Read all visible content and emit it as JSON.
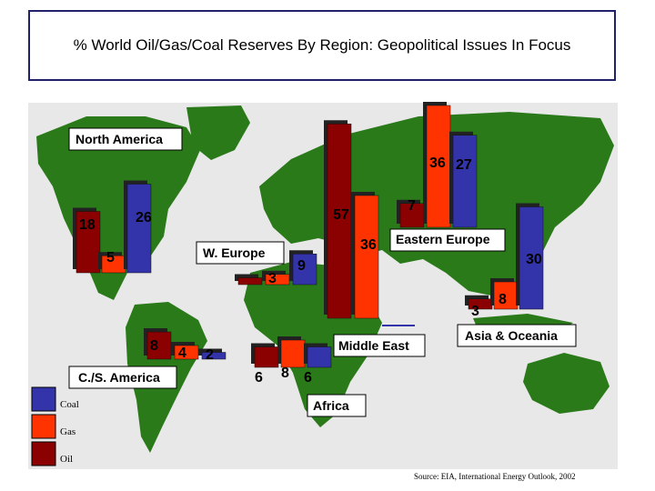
{
  "title": "% World Oil/Gas/Coal Reserves By Region:  Geopolitical Issues In Focus",
  "source": "Source: EIA, International Energy Outlook, 2002",
  "colors": {
    "oil": "#8b0000",
    "gas": "#ff3300",
    "coal": "#3333aa",
    "ocean": "#e8e8e8",
    "land": "#2a7a1a",
    "title_border": "#22226a"
  },
  "chart_data": {
    "type": "bar",
    "title": "% World Oil/Gas/Coal Reserves By Region:  Geopolitical Issues In Focus",
    "series_keys": [
      "oil",
      "gas",
      "coal"
    ],
    "legend": [
      {
        "key": "coal",
        "label": "Coal"
      },
      {
        "key": "gas",
        "label": "Gas"
      },
      {
        "key": "oil",
        "label": "Oil"
      }
    ],
    "legend_position": "bottom-left",
    "regions": [
      {
        "id": "north-america",
        "name": "North America",
        "oil": 18,
        "gas": 5,
        "coal": 26
      },
      {
        "id": "cs-america",
        "name": "C./S. America",
        "oil": 8,
        "gas": 4,
        "coal": 2
      },
      {
        "id": "w-europe",
        "name": "W. Europe",
        "oil": 2,
        "gas": 3,
        "coal": 9
      },
      {
        "id": "eastern-europe",
        "name": "Eastern Europe",
        "oil": 7,
        "gas": 36,
        "coal": 27
      },
      {
        "id": "middle-east",
        "name": "Middle East",
        "oil": 57,
        "gas": 36,
        "coal": 0
      },
      {
        "id": "africa",
        "name": "Africa",
        "oil": 6,
        "gas": 8,
        "coal": 6
      },
      {
        "id": "asia-oceania",
        "name": "Asia & Oceania",
        "oil": 3,
        "gas": 8,
        "coal": 30
      }
    ]
  }
}
